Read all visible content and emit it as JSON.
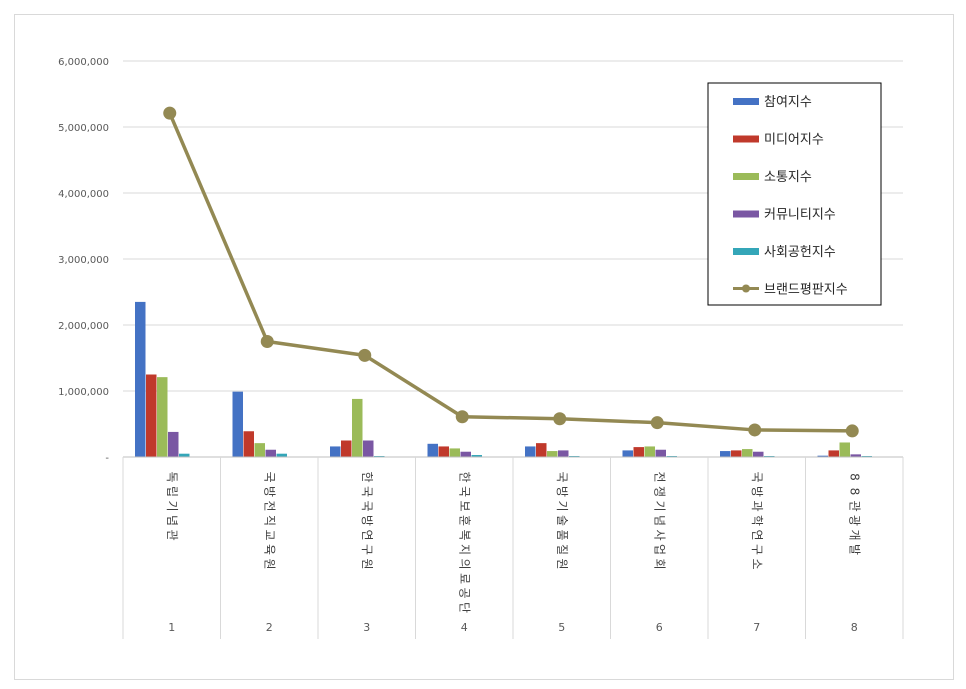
{
  "chart_data": {
    "type": "bar",
    "categories": [
      "1",
      "2",
      "3",
      "4",
      "5",
      "6",
      "7",
      "8"
    ],
    "category_names": [
      "독립기념관",
      "국방전직교육원",
      "한국국방연구원",
      "한국보훈복지의료공단",
      "국방기술품질원",
      "전쟁기념사업회",
      "국방과학연구소",
      "88관광개발"
    ],
    "y_ticks": [
      "-",
      "1,000,000",
      "2,000,000",
      "3,000,000",
      "4,000,000",
      "5,000,000",
      "6,000,000"
    ],
    "ylim": [
      0,
      6000000
    ],
    "grid": true,
    "legend_position": "top-right",
    "series": [
      {
        "name": "참여지수",
        "kind": "bar",
        "color": "#4472c4",
        "values": [
          2350000,
          990000,
          160000,
          200000,
          160000,
          100000,
          90000,
          20000
        ]
      },
      {
        "name": "미디어지수",
        "kind": "bar",
        "color": "#c0392b",
        "values": [
          1250000,
          390000,
          250000,
          160000,
          210000,
          150000,
          100000,
          100000
        ]
      },
      {
        "name": "소통지수",
        "kind": "bar",
        "color": "#9bbb59",
        "values": [
          1210000,
          210000,
          880000,
          130000,
          90000,
          160000,
          120000,
          220000
        ]
      },
      {
        "name": "커뮤니티지수",
        "kind": "bar",
        "color": "#7a57a3",
        "values": [
          380000,
          110000,
          250000,
          80000,
          100000,
          110000,
          80000,
          40000
        ]
      },
      {
        "name": "사회공헌지수",
        "kind": "bar",
        "color": "#34a6b8",
        "values": [
          50000,
          50000,
          15000,
          30000,
          15000,
          15000,
          15000,
          15000
        ]
      },
      {
        "name": "브랜드평판지수",
        "kind": "line",
        "color": "#938953",
        "values": [
          5210000,
          1750000,
          1540000,
          610000,
          580000,
          520000,
          410000,
          395000
        ]
      }
    ]
  }
}
